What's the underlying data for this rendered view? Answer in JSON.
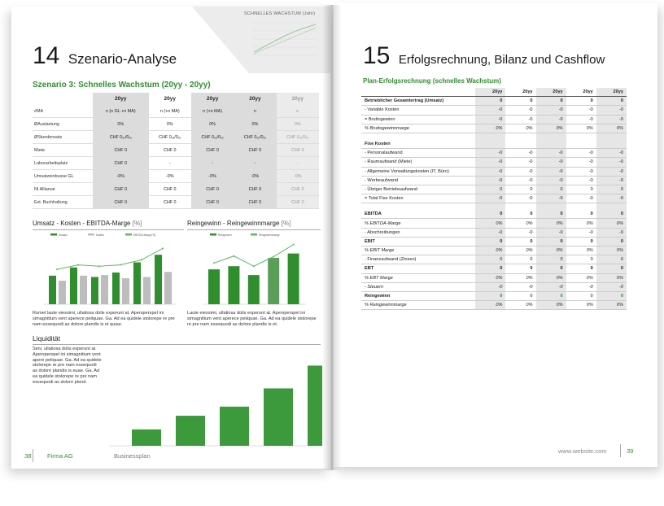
{
  "left": {
    "page_number": "38",
    "company": "Firma AG",
    "doc_name": "Businessplan",
    "mini_chart_title": "SCHNELLES WACHSTUM (Jahr)",
    "chapter_number": "14",
    "chapter_title": "Szenario-Analyse",
    "scenario_heading": "Szenario 3: Schnelles Wachstum (20yy - 20yy)",
    "scenario_table": {
      "headers": [
        "20yy",
        "20yy",
        "20yy",
        "20yy",
        "20yy"
      ],
      "rows": [
        {
          "label": "#MA",
          "values": [
            "n (n GL +n MA)",
            "n (+n MA)",
            "n (+n MA)",
            "n",
            "n"
          ]
        },
        {
          "label": "ØAuslastung",
          "values": [
            "0%",
            "0%",
            "0%",
            "0%",
            "0%"
          ]
        },
        {
          "label": "ØStundensatz",
          "values": [
            "CHF 0ₓₓ/0ₓₓ",
            "CHF 0ₓₓ/0ₓₓ",
            "CHF 0ₓₓ/0ₓₓ",
            "CHF 0ₓₓ/0ₓₓ",
            "CHF 0ₓₓ/0ₓₓ"
          ]
        },
        {
          "label": "Miete",
          "values": [
            "CHF 0",
            "CHF 0",
            "CHF 0",
            "CHF 0",
            "CHF 0"
          ]
        },
        {
          "label": "Laborarbeitsplatz",
          "values": [
            "CHF 0",
            "-",
            "-",
            "-",
            "-"
          ]
        },
        {
          "label": "Umsatzeinbusse GL",
          "values": [
            "-0%",
            "-0%",
            "-0%",
            "-0%",
            "-0%"
          ]
        },
        {
          "label": "NI Allianoe",
          "values": [
            "CHF 0",
            "CHF 0",
            "CHF 0",
            "CHF 0",
            "CHF 0"
          ]
        },
        {
          "label": "Ext. Buchhaltung",
          "values": [
            "CHF 0",
            "CHF 0",
            "CHF 0",
            "CHF 0",
            "CHF 0"
          ]
        }
      ]
    },
    "chart1_title": "Umsatz - Kosten - EBITDA-Marge",
    "chart1_unit": "[%]",
    "chart1_legend": [
      "Umsatz",
      "Kosten",
      "EBITDA-Marge [%]"
    ],
    "chart1_para": "Rumet laute eiessimi, ullatiosa dolis experunt at. Apersperspel ini simagnitium vent aperece peliquae. Ga. Ad ea quidele stolorepe re pre nam essequodi as dolore plandis is et quiae.",
    "chart2_title": "Reingewinn - Reingewinnmarge",
    "chart2_unit": "[%]",
    "chart2_legend": [
      "Reingewinn",
      "Reingewinnmarge"
    ],
    "chart2_para": "Laute eiessimi, ullatiosa dolis experunt at. Apersperspel ini simagnitium vent aperece peliquae. Ga. Ad ea quidele stolorepe re pre nam essequodi as dolore plandis is et.",
    "liquid_title": "Liquidität",
    "liquid_para": "Simi, ullatiosa dolis experunt at. Apersperspel ini simagnitium vent apere peliquae. Ga. Ad ea quidele stolorepe re pre nam essequodi as dolore plandis is euae. Ga. Ad ea quidele stolorepe re pre nam essequodi as dolore plend."
  },
  "right": {
    "page_number": "39",
    "website": "www.website.com",
    "chapter_number": "15",
    "chapter_title": "Erfolgsrechnung, Bilanz und Cashflow",
    "subheading": "Plan-Erfolgsrechnung (schnelles Wachstum)",
    "year_headers": [
      "20yy",
      "20yy",
      "20yy",
      "20yy",
      "20yy"
    ],
    "rows": [
      {
        "label": "Betrieblicher Gesamtertrag (Umsatz)",
        "values": [
          "0",
          "0",
          "0",
          "0",
          "0"
        ],
        "style": "b rule"
      },
      {
        "label": "- Variable Kosten",
        "values": [
          "-0",
          "-0",
          "-0",
          "-0",
          "-0"
        ],
        "style": "rule"
      },
      {
        "label": "= Bruttogewinn",
        "values": [
          "-0",
          "-0",
          "-0",
          "-0",
          "-0"
        ],
        "style": "rule"
      },
      {
        "label": "% Bruttogewinnmarge",
        "values": [
          "0%",
          "0%",
          "0%",
          "0%",
          "0%"
        ],
        "style": "it rule"
      },
      {
        "label": "",
        "values": [
          "",
          "",
          "",
          "",
          ""
        ],
        "style": "sp"
      },
      {
        "label": "Fixe Kosten",
        "values": [
          "",
          "",
          "",
          "",
          ""
        ],
        "style": "b rule"
      },
      {
        "label": "- Personalaufwand",
        "values": [
          "-0",
          "-0",
          "-0",
          "-0",
          "-0"
        ],
        "style": "rule"
      },
      {
        "label": "- Raumaufwand (Miete)",
        "values": [
          "-0",
          "-0",
          "-0",
          "-0",
          "-0"
        ],
        "style": "rule"
      },
      {
        "label": "- Allgemeine Verwaltungskosten (IT, Büro)",
        "values": [
          "-0",
          "-0",
          "-0",
          "-0",
          "-0"
        ],
        "style": "rule"
      },
      {
        "label": "- Werbeaufwand",
        "values": [
          "-0",
          "-0",
          "-0",
          "-0",
          "-0"
        ],
        "style": "rule"
      },
      {
        "label": "- Übriger Betriebsaufwand",
        "values": [
          "0",
          "0",
          "0",
          "0",
          "0"
        ],
        "style": "rule"
      },
      {
        "label": "= Total Fixe Kosten",
        "values": [
          "-0",
          "-0",
          "-0",
          "-0",
          "-0"
        ],
        "style": "rule"
      },
      {
        "label": "",
        "values": [
          "",
          "",
          "",
          "",
          ""
        ],
        "style": "sp"
      },
      {
        "label": "EBITDA",
        "values": [
          "0",
          "0",
          "0",
          "0",
          "0"
        ],
        "style": "b rule"
      },
      {
        "label": "% EBITDA-Marge",
        "values": [
          "0%",
          "0%",
          "0%",
          "0%",
          "0%"
        ],
        "style": "it rule"
      },
      {
        "label": "- Abschreibungen",
        "values": [
          "-0",
          "-0",
          "-0",
          "-0",
          "-0"
        ],
        "style": "rule"
      },
      {
        "label": "EBIT",
        "values": [
          "0",
          "0",
          "0",
          "0",
          "0"
        ],
        "style": "b rule"
      },
      {
        "label": "% EBIT Marge",
        "values": [
          "0%",
          "0%",
          "0%",
          "0%",
          "0%"
        ],
        "style": "it rule"
      },
      {
        "label": "- Finanzaufwand (Zinsen)",
        "values": [
          "0",
          "0",
          "0",
          "0",
          "0"
        ],
        "style": "rule"
      },
      {
        "label": "EBT",
        "values": [
          "0",
          "0",
          "0",
          "0",
          "0"
        ],
        "style": "b rule"
      },
      {
        "label": "% EBT Marge",
        "values": [
          "0%",
          "0%",
          "0%",
          "0%",
          "0%"
        ],
        "style": "it rule"
      },
      {
        "label": "- Steuern",
        "values": [
          "-0",
          "-0",
          "-0",
          "-0",
          "-0"
        ],
        "style": "it rule"
      },
      {
        "label": "Reingewinn",
        "values": [
          "0",
          "0",
          "0",
          "0",
          "0"
        ],
        "style": "b rule green"
      },
      {
        "label": "% Reingewinnmarge",
        "values": [
          "0%",
          "0%",
          "0%",
          "0%",
          "0%"
        ],
        "style": "it rule"
      }
    ]
  },
  "colors": {
    "accent_green": "#2f8f2f",
    "light_green": "#5cb85c",
    "grey_bar": "#bdbdbd"
  },
  "chart_data": [
    {
      "type": "bar",
      "title": "Umsatz - Kosten - EBITDA-Marge",
      "series": [
        {
          "name": "Umsatz",
          "values": [
            0.45,
            0.58,
            0.43,
            0.5,
            0.66,
            0.78
          ]
        },
        {
          "name": "Kosten",
          "values": [
            0.37,
            0.45,
            0.46,
            0.41,
            0.43,
            0.51
          ]
        },
        {
          "name": "EBITDA-Marge [%]",
          "values": [
            0.55,
            0.62,
            0.6,
            0.62,
            0.7,
            0.88
          ]
        }
      ]
    },
    {
      "type": "bar",
      "title": "Reingewinn - Reingewinnmarge",
      "series": [
        {
          "name": "Reingewinn",
          "values": [
            0.55,
            0.6,
            0.46,
            0.73,
            0.8
          ]
        },
        {
          "name": "Reingewinnmarge",
          "values": [
            0.65,
            0.76,
            0.6,
            0.75,
            0.94
          ]
        }
      ]
    },
    {
      "type": "bar",
      "title": "Liquidität",
      "values": [
        0.18,
        0.33,
        0.43,
        0.63,
        0.88
      ]
    },
    {
      "type": "line",
      "title": "SCHNELLES WACHSTUM (Jahr)",
      "series": [
        {
          "name": "",
          "values": [
            0.1,
            0.35,
            0.6,
            0.8,
            0.95
          ]
        },
        {
          "name": "",
          "values": [
            0.05,
            0.25,
            0.45,
            0.65,
            0.85
          ]
        }
      ]
    }
  ]
}
